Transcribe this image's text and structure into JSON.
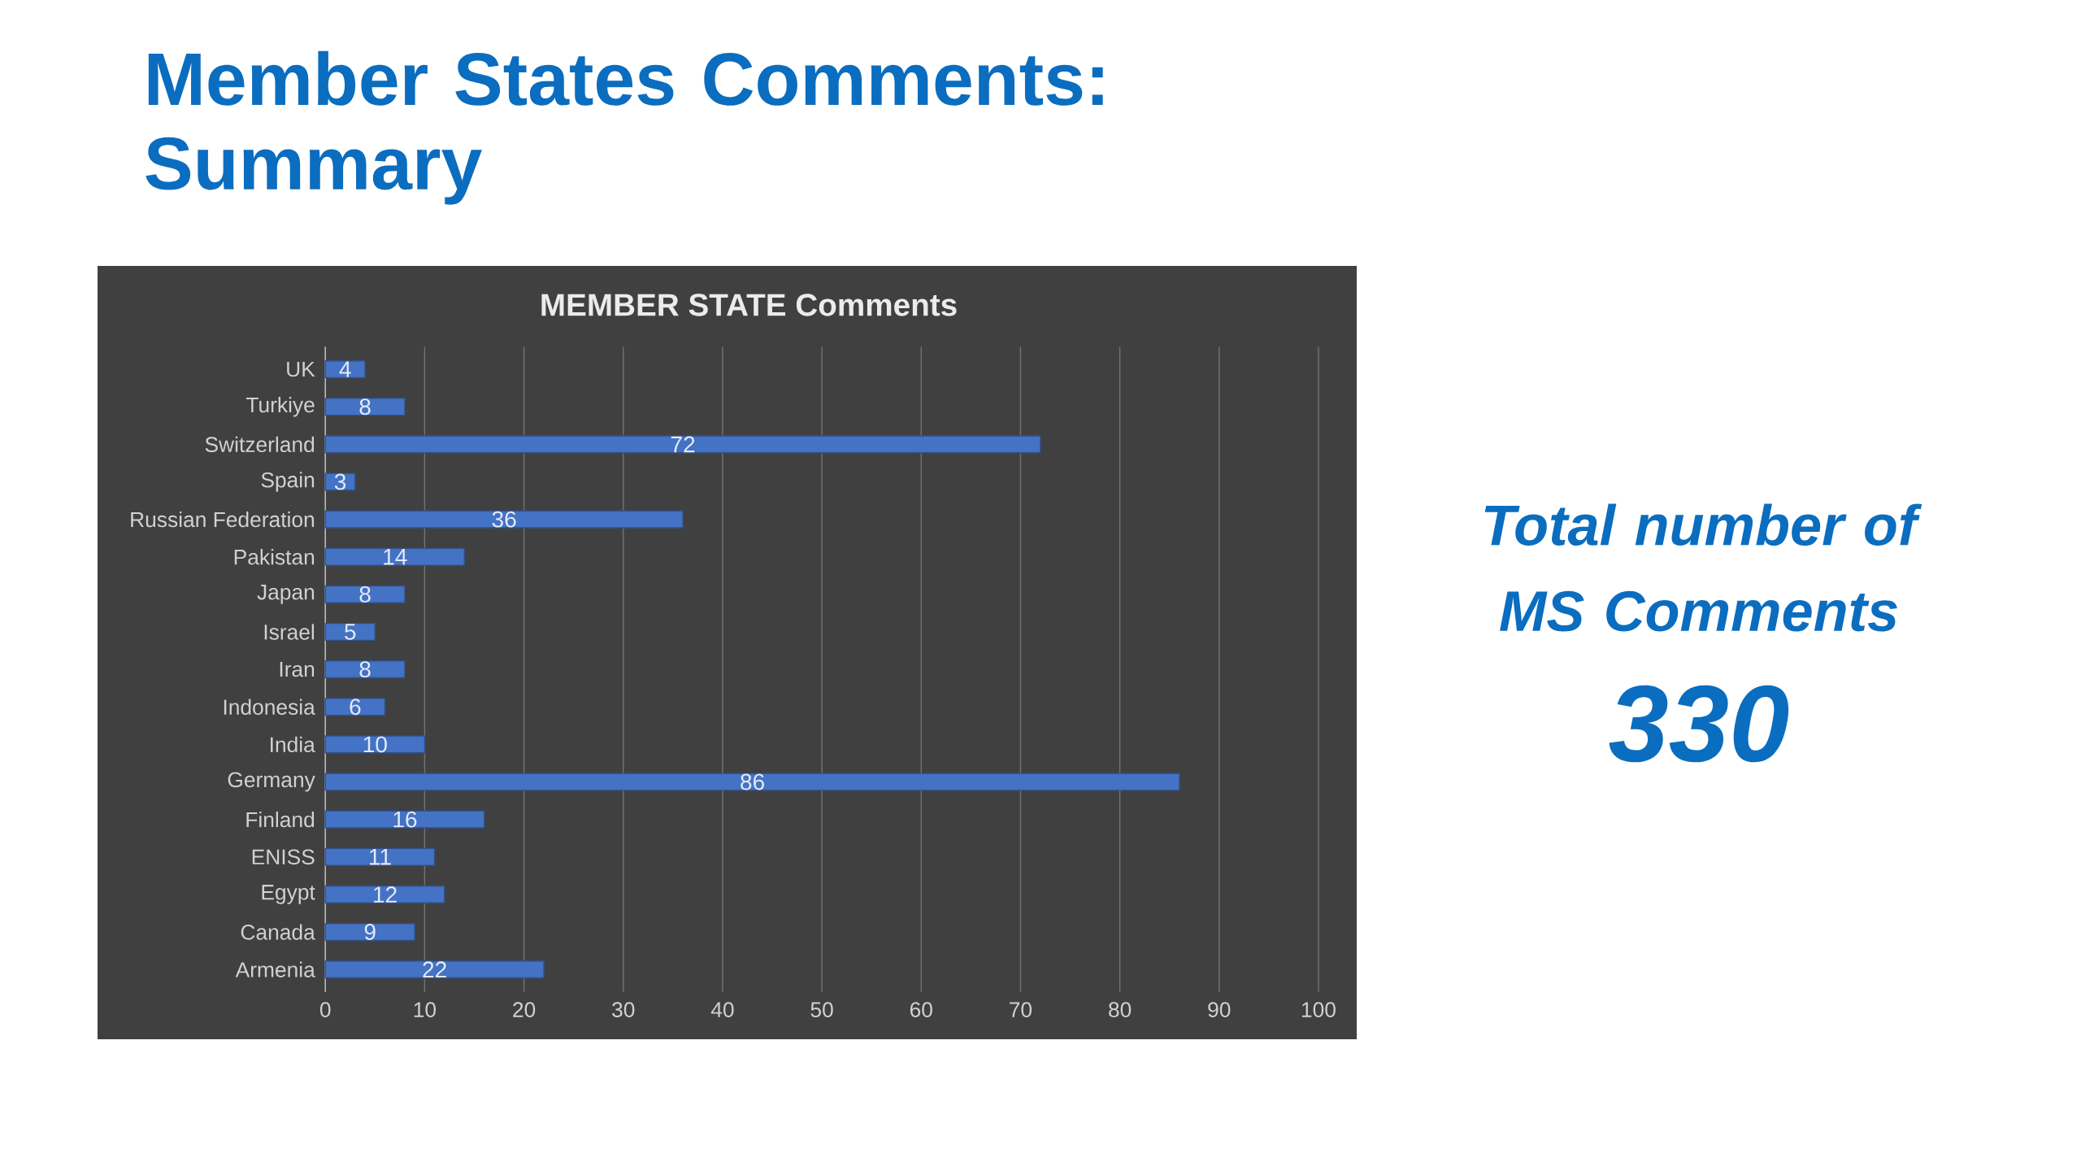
{
  "chart_data": {
    "type": "bar",
    "orientation": "horizontal",
    "title": "Member States Comments: Summary",
    "subtitle": "MEMBER STATE Comments",
    "categories": [
      "UK",
      "Turkiye",
      "Switzerland",
      "Spain",
      "Russian Federation",
      "Pakistan",
      "Japan",
      "Israel",
      "Iran",
      "Indonesia",
      "India",
      "Germany",
      "Finland",
      "ENISS",
      "Egypt",
      "Canada",
      "Armenia"
    ],
    "values": [
      4,
      8,
      72,
      3,
      36,
      14,
      8,
      5,
      8,
      6,
      10,
      86,
      16,
      11,
      12,
      9,
      22
    ],
    "color": "#4472c4",
    "data_labels": true,
    "grid": "x",
    "xlim": [
      0,
      100
    ],
    "xticks": [
      0,
      10,
      20,
      30,
      40,
      50,
      60,
      70,
      80,
      90,
      100
    ],
    "annotations": [
      "Total number of MS Comments",
      "330"
    ]
  }
}
